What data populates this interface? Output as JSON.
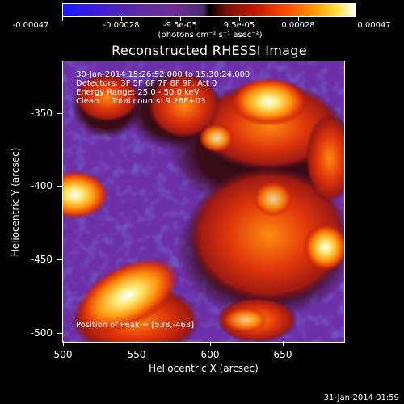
{
  "colorbar": {
    "ticks": [
      "-0.00047",
      "-0.00028",
      "-9.5e-05",
      "9.5e-05",
      "0.00028",
      "0.00047"
    ],
    "units": "(photons cm⁻² s⁻¹ asec⁻²)"
  },
  "title": "Reconstructed RHESSI Image",
  "info": {
    "line1": "30-Jan-2014 15:26:52.000 to 15:30:24.000",
    "line2": "Detectors: 3F 5F 6F 7F 8F 9F, Att 0",
    "line3": "Energy Range: 25.0 - 50.0 keV",
    "line4": "Clean     Total counts: 9.26E+03"
  },
  "peak": "Position of Peak = [538,-463]",
  "axes": {
    "xlabel": "Heliocentric X (arcsec)",
    "ylabel": "Heliocentric Y (arcsec)",
    "xticks": [
      "500",
      "550",
      "600",
      "650"
    ],
    "yticks": [
      "-350",
      "-400",
      "-450",
      "-500"
    ]
  },
  "footer": "31-Jan-2014 01:59"
}
